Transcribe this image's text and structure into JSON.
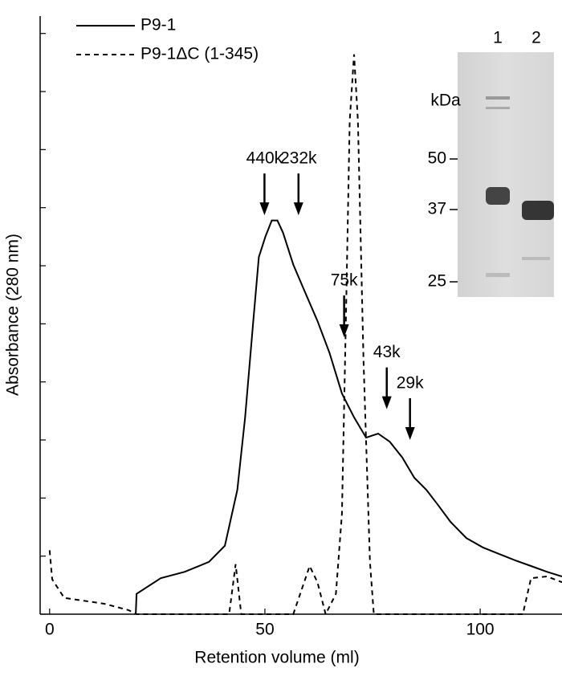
{
  "chart_data": {
    "type": "line",
    "xlabel": "Retention volume (ml)",
    "ylabel": "Absorbance (280 nm)",
    "xlim": [
      -2.2,
      119
    ],
    "xticks": [
      0,
      50,
      100
    ],
    "ylim": [
      0,
      10.3
    ],
    "yticks": [
      0,
      1,
      2,
      3,
      4,
      5,
      6,
      7,
      8,
      9,
      10
    ],
    "show_ytick_labels": false,
    "legend": "top-left",
    "series": [
      {
        "name": "P9-1",
        "color": "#000000",
        "dash": "solid",
        "x": [
          20,
          20.2,
          25.8,
          31.4,
          37.0,
          40.7,
          43.6,
          45.4,
          47.3,
          48.6,
          50.1,
          51.6,
          52.9,
          54.2,
          56.6,
          59.4,
          62.2,
          65.0,
          67.9,
          70.7,
          73.5,
          76.3,
          79.0,
          81.9,
          84.7,
          87.5,
          90.3,
          93.1,
          96.8,
          100.6,
          104.3,
          108.0,
          111.8,
          115.5,
          119
        ],
        "values": [
          0,
          0.35,
          0.62,
          0.73,
          0.9,
          1.18,
          2.14,
          3.39,
          5.05,
          6.15,
          6.5,
          6.78,
          6.78,
          6.57,
          6.02,
          5.53,
          5.05,
          4.5,
          3.8,
          3.39,
          3.04,
          3.11,
          2.97,
          2.7,
          2.35,
          2.14,
          1.87,
          1.59,
          1.31,
          1.15,
          1.04,
          0.93,
          0.83,
          0.73,
          0.65
        ]
      },
      {
        "name": "P9-1ΔC (1-345)",
        "color": "#000000",
        "dash": "dashed",
        "x": [
          0,
          0.6,
          3.4,
          7.1,
          12.7,
          18.3,
          20.2,
          41.7,
          43.2,
          44.5,
          56.6,
          60.4,
          62.2,
          64.1,
          66.5,
          67.9,
          68.8,
          69.7,
          70.7,
          71.6,
          72.9,
          74.4,
          75.3,
          109.9,
          111.8,
          115.5,
          119
        ],
        "values": [
          1.1,
          0.6,
          0.28,
          0.24,
          0.18,
          0.07,
          0,
          0,
          0.86,
          0,
          0,
          0.83,
          0.55,
          0,
          0.35,
          1.73,
          5.05,
          8.5,
          9.64,
          8.5,
          4.36,
          0.9,
          0,
          0,
          0.62,
          0.65,
          0.55
        ]
      }
    ],
    "annotations": [
      {
        "text": "440k",
        "x": 49.9,
        "y": 6.87
      },
      {
        "text": "232k",
        "x": 57.8,
        "y": 6.87
      },
      {
        "text": "75k",
        "x": 68.4,
        "y": 4.77
      },
      {
        "text": "43k",
        "x": 78.3,
        "y": 3.53
      },
      {
        "text": "29k",
        "x": 83.7,
        "y": 3.0
      }
    ],
    "inset": {
      "lanes": [
        "1",
        "2"
      ],
      "unit": "kDa",
      "markers": [
        "50",
        "37",
        "25"
      ]
    }
  }
}
